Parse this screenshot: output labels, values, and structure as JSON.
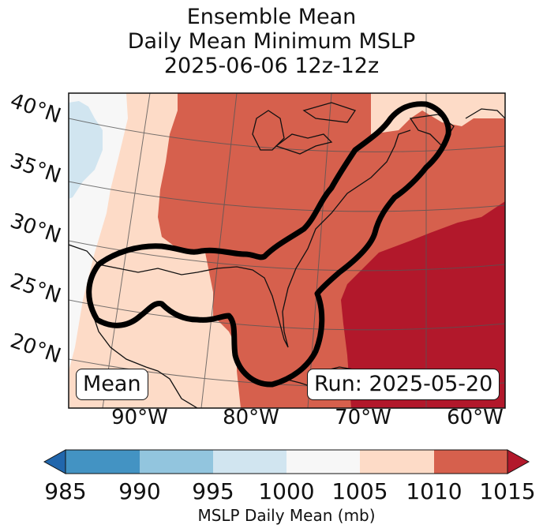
{
  "title": {
    "line1": "Ensemble Mean",
    "line2": "Daily Mean Minimum MSLP",
    "line3": "2025-06-06 12z-12z"
  },
  "map": {
    "lat_labels": [
      "40°N",
      "35°N",
      "30°N",
      "25°N",
      "20°N"
    ],
    "lon_labels": [
      "90°W",
      "80°W",
      "70°W",
      "60°W"
    ],
    "mean_box": "Mean",
    "run_box": "Run: 2025-05-20",
    "contour_color": "#000000"
  },
  "colorbar": {
    "label": "MSLP Daily Mean (mb)",
    "ticks": [
      "985",
      "990",
      "995",
      "1000",
      "1005",
      "1010",
      "1015"
    ],
    "colors": {
      "under": "#2166ac",
      "985-990": "#4393c3",
      "990-995": "#92c5de",
      "995-1000": "#d1e5f0",
      "1000-1005": "#f7f7f7",
      "1005-1010": "#fddbc7",
      "1010-1015": "#d6604d",
      "over": "#b2182b"
    }
  }
}
